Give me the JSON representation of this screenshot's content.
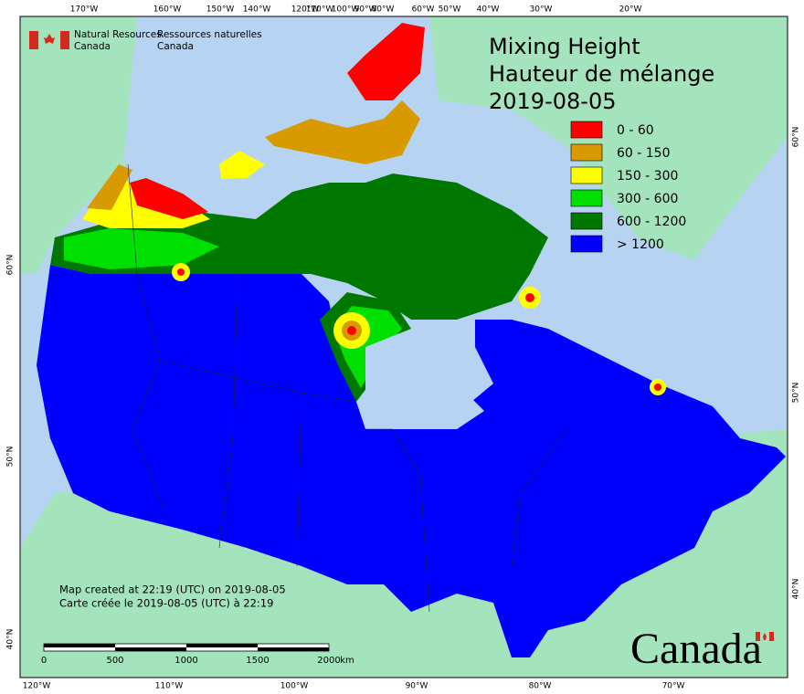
{
  "header": {
    "agency_en": "Natural Resources",
    "agency_en_2": "Canada",
    "agency_fr": "Ressources naturelles",
    "agency_fr_2": "Canada"
  },
  "title": {
    "en": "Mixing Height",
    "fr": "Hauteur de mélange",
    "date": "2019-08-05"
  },
  "legend": [
    {
      "label": "0 - 60",
      "color": "#ff0000"
    },
    {
      "label": "60 - 150",
      "color": "#d99a00"
    },
    {
      "label": "150 - 300",
      "color": "#ffff00"
    },
    {
      "label": "300 - 600",
      "color": "#00e000"
    },
    {
      "label": "600 - 1200",
      "color": "#007800"
    },
    {
      "label": "> 1200",
      "color": "#0000ff"
    }
  ],
  "top_longitudes": [
    "170°W",
    "160°W",
    "150°W",
    "140°W",
    "120°W",
    "110°W",
    "100°W",
    "90°W",
    "80°W",
    "60°W",
    "50°W",
    "40°W",
    "30°W",
    "20°W"
  ],
  "bottom_longitudes": [
    "120°W",
    "110°W",
    "100°W",
    "90°W",
    "80°W",
    "70°W"
  ],
  "left_latitudes": [
    "60°N",
    "50°N",
    "40°N"
  ],
  "right_latitudes": [
    "60°N",
    "50°N",
    "40°N"
  ],
  "credits": [
    "Map created at 22:19 (UTC) on 2019-08-05",
    "Carte créée le 2019-08-05 (UTC) à 22:19"
  ],
  "scale_bar": {
    "labels": [
      "0",
      "500",
      "1000",
      "1500",
      "2000"
    ],
    "unit": "km"
  },
  "wordmark": "Canada"
}
